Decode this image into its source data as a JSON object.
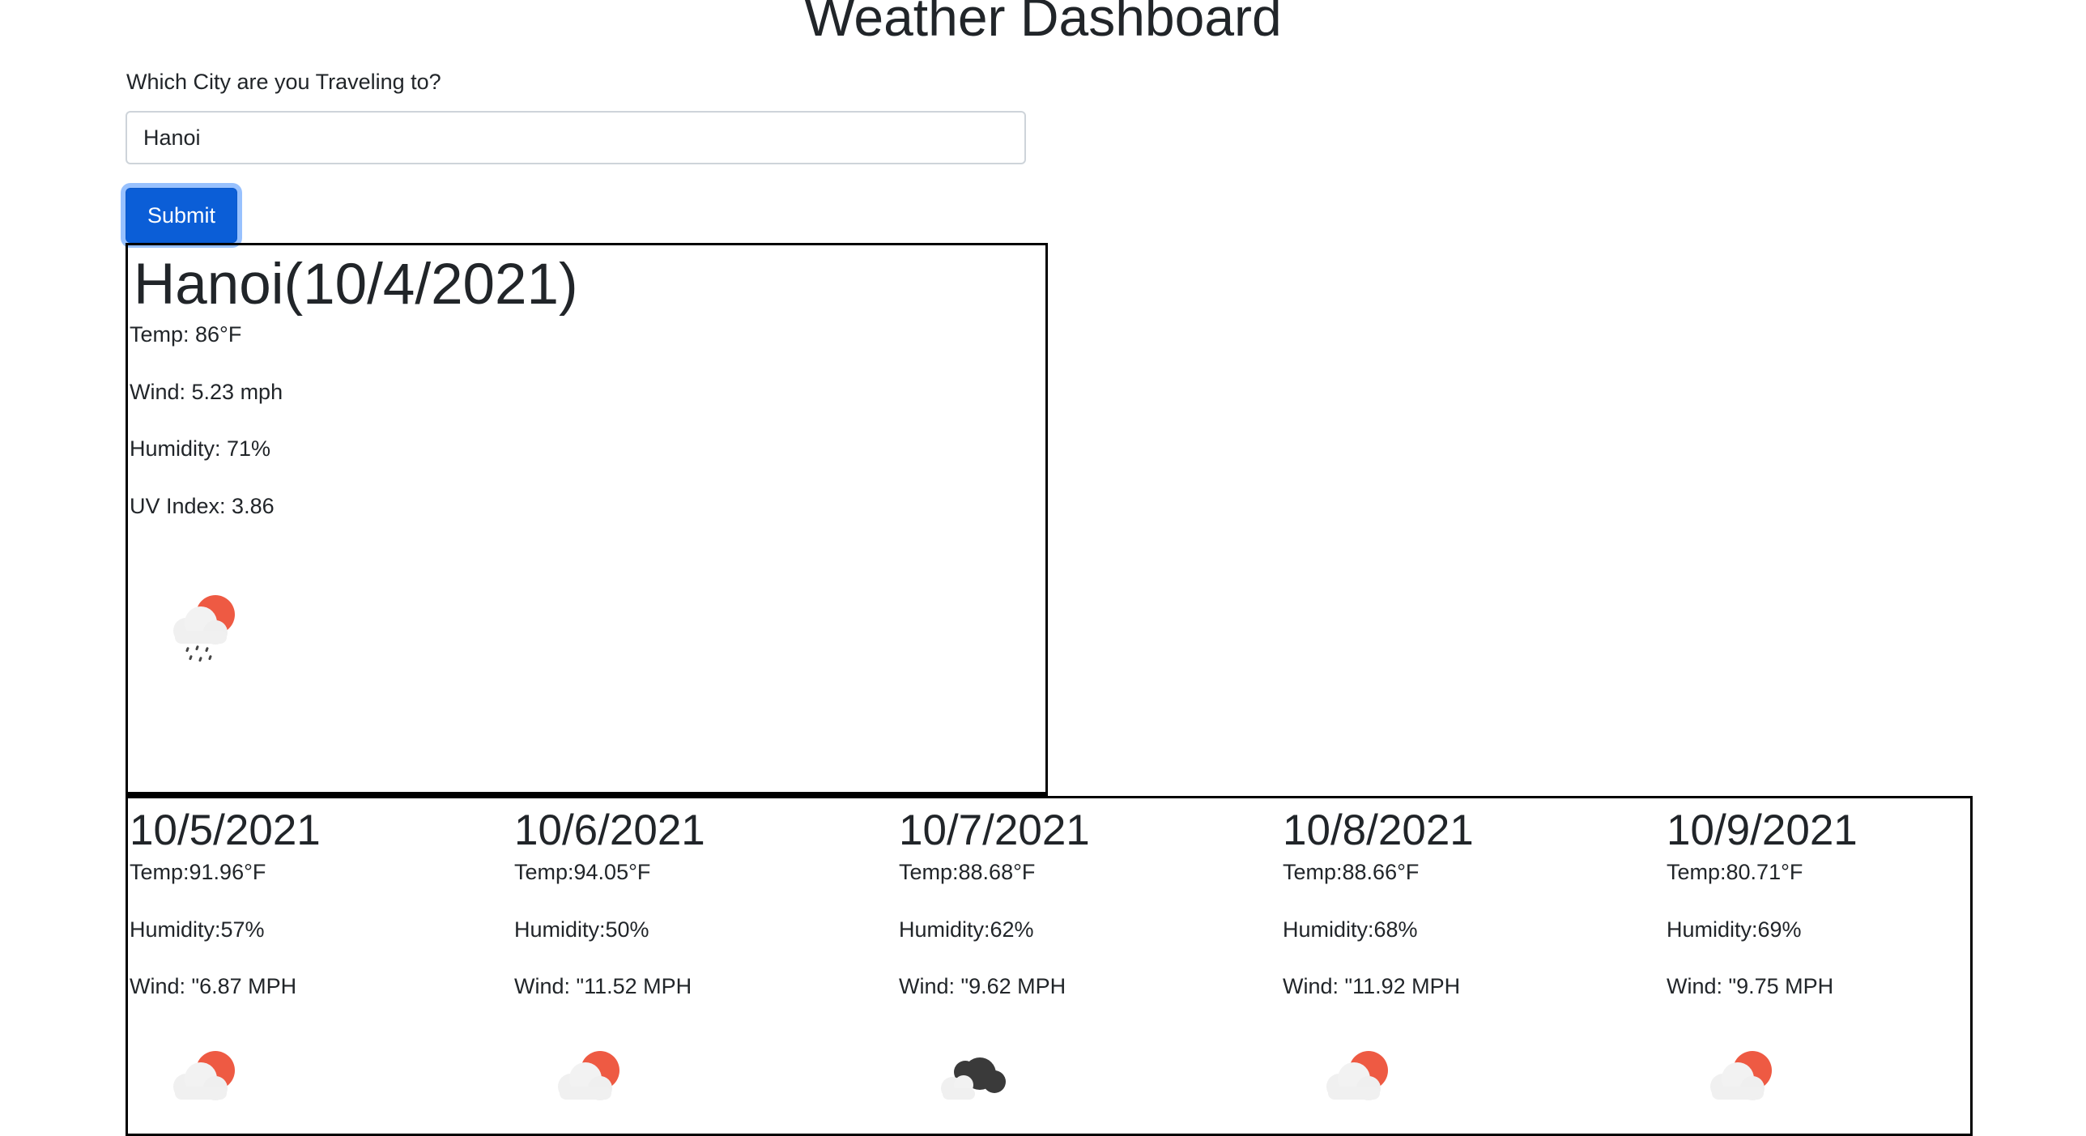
{
  "header": {
    "title": "Weather Dashboard"
  },
  "search": {
    "label": "Which City are you Traveling to?",
    "value": "Hanoi",
    "submit_label": "Submit"
  },
  "current": {
    "heading": "Hanoi(10/4/2021)",
    "temp": "Temp: 86°F",
    "wind": "Wind: 5.23 mph",
    "humidity": "Humidity: 71%",
    "uv": "UV Index: 3.86",
    "icon": "rain-with-sun-icon"
  },
  "forecast": [
    {
      "date": "10/5/2021",
      "temp": "Temp:91.96°F",
      "humidity": "Humidity:57%",
      "wind": "Wind: \"6.87 MPH",
      "icon": "cloud-with-sun-icon"
    },
    {
      "date": "10/6/2021",
      "temp": "Temp:94.05°F",
      "humidity": "Humidity:50%",
      "wind": "Wind: \"11.52 MPH",
      "icon": "cloud-with-sun-icon"
    },
    {
      "date": "10/7/2021",
      "temp": "Temp:88.68°F",
      "humidity": "Humidity:62%",
      "wind": "Wind: \"9.62 MPH",
      "icon": "dark-clouds-icon"
    },
    {
      "date": "10/8/2021",
      "temp": "Temp:88.66°F",
      "humidity": "Humidity:68%",
      "wind": "Wind: \"11.92 MPH",
      "icon": "cloud-with-sun-icon"
    },
    {
      "date": "10/9/2021",
      "temp": "Temp:80.71°F",
      "humidity": "Humidity:69%",
      "wind": "Wind: \"9.75 MPH",
      "icon": "cloud-with-sun-icon"
    }
  ],
  "colors": {
    "accent": "#0b5ed7",
    "sun": "#ee5a43",
    "cloud": "#f0f0f0",
    "dark_cloud": "#3a3a3a",
    "border": "#000000"
  }
}
